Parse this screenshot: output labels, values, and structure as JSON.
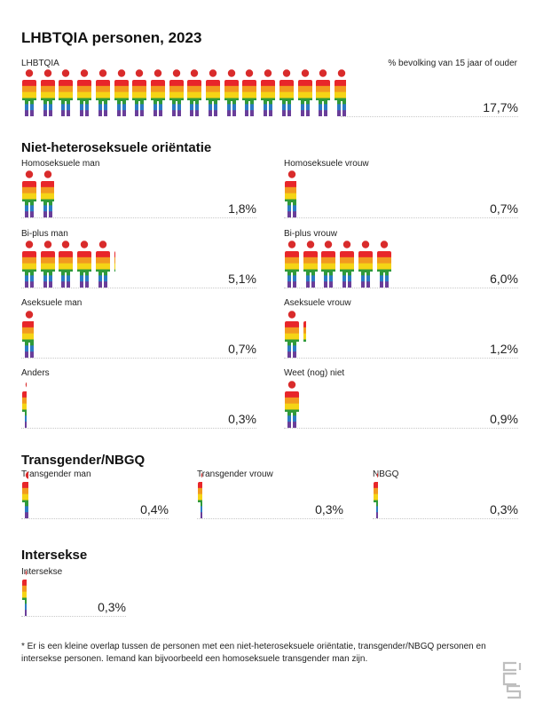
{
  "title": "LHBTQIA personen, 2023",
  "unit_note": "% bevolking van 15 jaar of ouder",
  "sections": {
    "orientation": "Niet-heteroseksuele oriëntatie",
    "transgender": "Transgender/NBGQ",
    "intersex": "Intersekse"
  },
  "footnote": "* Er is een kleine overlap tussen de personen met een niet-heteroseksuele oriëntatie, transgender/NBGQ personen en intersekse personen. Iemand kan bijvoorbeeld een homoseksuele transgender man zijn.",
  "colors": {
    "head": "#d92b2b",
    "stripes": [
      "#e8262a",
      "#f29a1f",
      "#f5d415",
      "#2f9a3a",
      "#2b7bc4",
      "#6a3e9a"
    ]
  },
  "icon": "person-rainbow-icon",
  "chart_data": [
    {
      "type": "pictogram",
      "label": "LHBTQIA",
      "value": 17.7,
      "display": "17,7%",
      "units_per_icon": 1
    },
    {
      "type": "pictogram",
      "label": "Homoseksuele man",
      "value": 1.8,
      "display": "1,8%",
      "units_per_icon": 1
    },
    {
      "type": "pictogram",
      "label": "Homoseksuele vrouw",
      "value": 0.7,
      "display": "0,7%",
      "units_per_icon": 1
    },
    {
      "type": "pictogram",
      "label": "Bi-plus man",
      "value": 5.1,
      "display": "5,1%",
      "units_per_icon": 1
    },
    {
      "type": "pictogram",
      "label": "Bi-plus vrouw",
      "value": 6.0,
      "display": "6,0%",
      "units_per_icon": 1
    },
    {
      "type": "pictogram",
      "label": "Aseksuele man",
      "value": 0.7,
      "display": "0,7%",
      "units_per_icon": 1
    },
    {
      "type": "pictogram",
      "label": "Aseksuele vrouw",
      "value": 1.2,
      "display": "1,2%",
      "units_per_icon": 1
    },
    {
      "type": "pictogram",
      "label": "Anders",
      "value": 0.3,
      "display": "0,3%",
      "units_per_icon": 1
    },
    {
      "type": "pictogram",
      "label": "Weet (nog) niet",
      "value": 0.9,
      "display": "0,9%",
      "units_per_icon": 1
    },
    {
      "type": "pictogram",
      "label": "Transgender man",
      "value": 0.4,
      "display": "0,4%",
      "units_per_icon": 1
    },
    {
      "type": "pictogram",
      "label": "Transgender vrouw",
      "value": 0.3,
      "display": "0,3%",
      "units_per_icon": 1
    },
    {
      "type": "pictogram",
      "label": "NBGQ",
      "value": 0.3,
      "display": "0,3%",
      "units_per_icon": 1
    },
    {
      "type": "pictogram",
      "label": "Intersekse",
      "value": 0.3,
      "display": "0,3%",
      "units_per_icon": 1
    }
  ]
}
